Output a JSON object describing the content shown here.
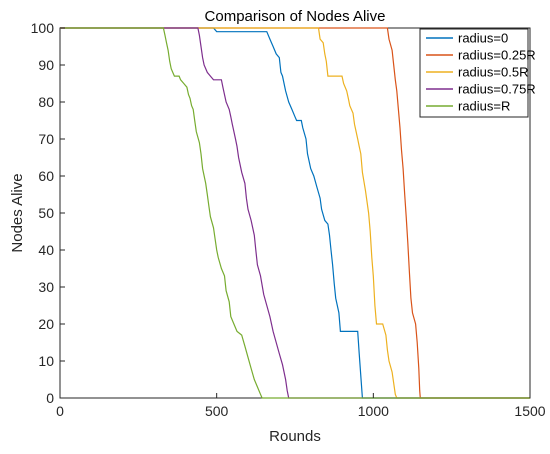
{
  "chart_data": {
    "type": "line",
    "title": "Comparison of Nodes Alive",
    "xlabel": "Rounds",
    "ylabel": "Nodes Alive",
    "xlim": [
      0,
      1500
    ],
    "ylim": [
      0,
      100
    ],
    "xticks": [
      "0",
      "500",
      "1000",
      "1500"
    ],
    "yticks": [
      "0",
      "10",
      "20",
      "30",
      "40",
      "50",
      "60",
      "70",
      "80",
      "90",
      "100"
    ],
    "legend_position": "top-right",
    "grid": false,
    "series": [
      {
        "name": "radius=0",
        "color": "#0072BD",
        "points": [
          [
            0,
            100
          ],
          [
            490,
            100
          ],
          [
            500,
            99
          ],
          [
            660,
            99
          ],
          [
            670,
            97
          ],
          [
            680,
            95
          ],
          [
            690,
            93
          ],
          [
            700,
            92
          ],
          [
            705,
            88
          ],
          [
            710,
            87
          ],
          [
            720,
            83
          ],
          [
            730,
            80
          ],
          [
            740,
            78
          ],
          [
            750,
            76
          ],
          [
            755,
            75
          ],
          [
            770,
            75
          ],
          [
            775,
            73
          ],
          [
            785,
            70
          ],
          [
            790,
            66
          ],
          [
            800,
            62
          ],
          [
            810,
            60
          ],
          [
            820,
            57
          ],
          [
            830,
            54
          ],
          [
            835,
            51
          ],
          [
            845,
            48
          ],
          [
            855,
            47
          ],
          [
            860,
            44
          ],
          [
            865,
            40
          ],
          [
            870,
            36
          ],
          [
            875,
            31
          ],
          [
            880,
            27
          ],
          [
            890,
            23
          ],
          [
            895,
            18
          ],
          [
            950,
            18
          ],
          [
            955,
            12
          ],
          [
            960,
            6
          ],
          [
            965,
            0
          ],
          [
            1500,
            0
          ]
        ]
      },
      {
        "name": "radius=0.25R",
        "color": "#D95319",
        "points": [
          [
            0,
            100
          ],
          [
            1045,
            100
          ],
          [
            1050,
            97
          ],
          [
            1060,
            94
          ],
          [
            1065,
            90
          ],
          [
            1070,
            86
          ],
          [
            1075,
            83
          ],
          [
            1080,
            78
          ],
          [
            1085,
            73
          ],
          [
            1090,
            67
          ],
          [
            1095,
            62
          ],
          [
            1100,
            55
          ],
          [
            1105,
            49
          ],
          [
            1110,
            42
          ],
          [
            1115,
            34
          ],
          [
            1120,
            27
          ],
          [
            1125,
            23
          ],
          [
            1135,
            20
          ],
          [
            1140,
            15
          ],
          [
            1145,
            8
          ],
          [
            1148,
            2
          ],
          [
            1150,
            0
          ],
          [
            1500,
            0
          ]
        ]
      },
      {
        "name": "radius=0.5R",
        "color": "#EDB120",
        "points": [
          [
            0,
            100
          ],
          [
            825,
            100
          ],
          [
            830,
            97
          ],
          [
            840,
            96
          ],
          [
            845,
            93
          ],
          [
            850,
            91
          ],
          [
            855,
            87
          ],
          [
            900,
            87
          ],
          [
            905,
            85
          ],
          [
            915,
            83
          ],
          [
            920,
            81
          ],
          [
            925,
            79
          ],
          [
            935,
            77
          ],
          [
            940,
            74
          ],
          [
            950,
            70
          ],
          [
            955,
            68
          ],
          [
            960,
            66
          ],
          [
            965,
            61
          ],
          [
            975,
            56
          ],
          [
            985,
            50
          ],
          [
            990,
            45
          ],
          [
            995,
            38
          ],
          [
            1000,
            33
          ],
          [
            1005,
            25
          ],
          [
            1010,
            20
          ],
          [
            1030,
            20
          ],
          [
            1040,
            17
          ],
          [
            1045,
            13
          ],
          [
            1050,
            10
          ],
          [
            1060,
            7
          ],
          [
            1065,
            4
          ],
          [
            1070,
            1
          ],
          [
            1075,
            0
          ],
          [
            1500,
            0
          ]
        ]
      },
      {
        "name": "radius=0.75R",
        "color": "#7E2F8E",
        "points": [
          [
            0,
            100
          ],
          [
            440,
            100
          ],
          [
            445,
            98
          ],
          [
            450,
            95
          ],
          [
            455,
            92
          ],
          [
            460,
            90
          ],
          [
            470,
            88
          ],
          [
            480,
            87
          ],
          [
            490,
            86
          ],
          [
            515,
            86
          ],
          [
            520,
            84
          ],
          [
            525,
            82
          ],
          [
            530,
            80
          ],
          [
            540,
            78
          ],
          [
            545,
            76
          ],
          [
            550,
            74
          ],
          [
            560,
            70
          ],
          [
            565,
            68
          ],
          [
            570,
            65
          ],
          [
            580,
            61
          ],
          [
            590,
            58
          ],
          [
            595,
            54
          ],
          [
            600,
            51
          ],
          [
            610,
            48
          ],
          [
            620,
            44
          ],
          [
            625,
            40
          ],
          [
            630,
            36
          ],
          [
            640,
            33
          ],
          [
            650,
            28
          ],
          [
            660,
            25
          ],
          [
            670,
            22
          ],
          [
            680,
            18
          ],
          [
            690,
            15
          ],
          [
            700,
            12
          ],
          [
            710,
            9
          ],
          [
            720,
            5
          ],
          [
            725,
            2
          ],
          [
            730,
            0
          ],
          [
            1500,
            0
          ]
        ]
      },
      {
        "name": "radius=R",
        "color": "#77AC30",
        "points": [
          [
            0,
            100
          ],
          [
            330,
            100
          ],
          [
            335,
            98
          ],
          [
            340,
            96
          ],
          [
            345,
            94
          ],
          [
            350,
            91
          ],
          [
            355,
            89
          ],
          [
            365,
            87
          ],
          [
            380,
            87
          ],
          [
            385,
            86
          ],
          [
            395,
            85
          ],
          [
            405,
            84
          ],
          [
            410,
            82
          ],
          [
            415,
            81
          ],
          [
            420,
            79
          ],
          [
            425,
            78
          ],
          [
            430,
            75
          ],
          [
            435,
            72
          ],
          [
            445,
            69
          ],
          [
            450,
            66
          ],
          [
            455,
            62
          ],
          [
            465,
            58
          ],
          [
            470,
            55
          ],
          [
            475,
            52
          ],
          [
            480,
            49
          ],
          [
            490,
            46
          ],
          [
            495,
            43
          ],
          [
            500,
            40
          ],
          [
            505,
            38
          ],
          [
            515,
            35
          ],
          [
            525,
            33
          ],
          [
            530,
            29
          ],
          [
            540,
            26
          ],
          [
            545,
            22
          ],
          [
            555,
            20
          ],
          [
            565,
            18
          ],
          [
            580,
            17
          ],
          [
            590,
            14
          ],
          [
            600,
            11
          ],
          [
            610,
            8
          ],
          [
            620,
            5
          ],
          [
            630,
            3
          ],
          [
            640,
            1
          ],
          [
            645,
            0
          ],
          [
            1500,
            0
          ]
        ]
      }
    ]
  }
}
